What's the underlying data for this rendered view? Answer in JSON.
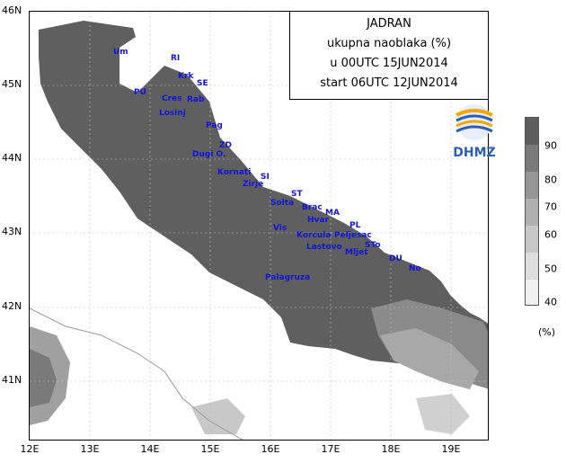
{
  "map": {
    "lat_ticks": [
      "46N",
      "45N",
      "44N",
      "43N",
      "42N",
      "41N"
    ],
    "lon_ticks": [
      "12E",
      "13E",
      "14E",
      "15E",
      "16E",
      "17E",
      "18E",
      "19E"
    ]
  },
  "title_box": {
    "line1": "JADRAN",
    "line2": "ukupna naoblaka (%)",
    "line3": "u 00UTC 15JUN2014",
    "line4": "start 06UTC 12JUN2014"
  },
  "logo": {
    "text": "DHMZ",
    "icon": "dhmz-logo-icon"
  },
  "legend": {
    "labels": [
      "90",
      "80",
      "70",
      "60",
      "50",
      "40"
    ],
    "unit": "(%)",
    "colors": [
      "#5e5e5e",
      "#7a7a7a",
      "#969696",
      "#b0b0b0",
      "#c8c8c8",
      "#dedede",
      "#f0f0f0"
    ]
  },
  "places": [
    "Um",
    "RI",
    "Krk",
    "SE",
    "PU",
    "Cres",
    "Rab",
    "Losinj",
    "Pag",
    "ZD",
    "Dugi O.",
    "Kornati",
    "SI",
    "Zirje",
    "ST",
    "Solta",
    "Brac",
    "MA",
    "Hvar",
    "PL",
    "Vis",
    "Korcula",
    "Peljesac",
    "Lastovo",
    "STo",
    "Mljet",
    "DU",
    "No",
    "Palagruza"
  ],
  "colors": {
    "sea_cloud": "#5f5f5f",
    "land": "#ffffff",
    "labels": "#1414d8",
    "grid": "#bdbdbd"
  }
}
